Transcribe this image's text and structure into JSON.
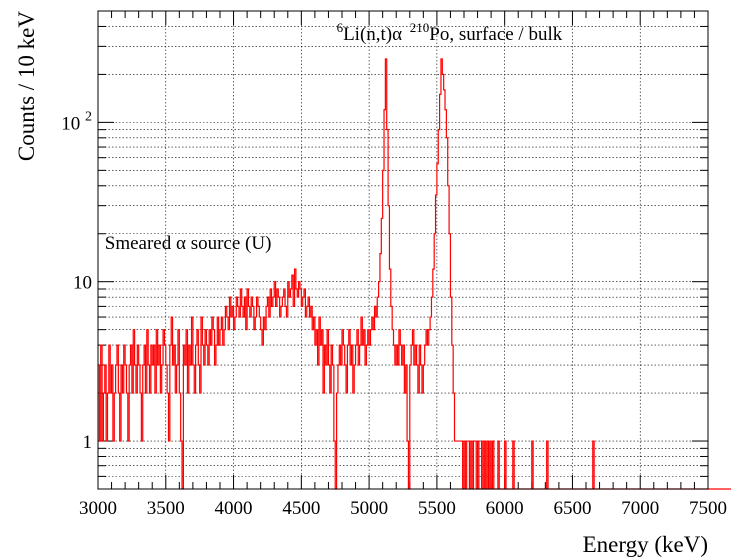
{
  "chart_data": {
    "type": "line",
    "title": "",
    "xlabel": "Energy (keV)",
    "ylabel": "Counts / 10 keV",
    "xlim": [
      3000,
      7500
    ],
    "ylim": [
      0.5,
      500
    ],
    "yscale": "log",
    "grid": true,
    "line_color": "#ff0000",
    "x_ticks": [
      3000,
      3500,
      4000,
      4500,
      5000,
      5500,
      6000,
      6500,
      7000,
      7500
    ],
    "x_tick_labels": [
      "3000",
      "3500",
      "4000",
      "4500",
      "5000",
      "5500",
      "6000",
      "6500",
      "7000",
      "7500"
    ],
    "y_tick_labels": [
      {
        "value": 1,
        "base": "1",
        "exp": ""
      },
      {
        "value": 10,
        "base": "10",
        "exp": ""
      },
      {
        "value": 100,
        "base": "10",
        "exp": "2"
      }
    ],
    "annotations": [
      {
        "id": "li",
        "sup": "6",
        "text": "Li(n,t)α",
        "x": 4760,
        "y": 330
      },
      {
        "id": "po",
        "sup": "210",
        "text": "Po, surface / bulk",
        "x": 5300,
        "y": 330
      },
      {
        "id": "smeared",
        "sup": "",
        "text": "Smeared α source (U)",
        "x": 3050,
        "y": 16
      }
    ],
    "series": [
      {
        "bin_width_kev": 10,
        "x_start": 3000,
        "values": [
          3,
          1,
          4,
          1,
          2,
          3,
          1,
          2,
          4,
          2,
          3,
          1,
          2,
          3,
          4,
          2,
          1,
          3,
          2,
          4,
          3,
          2,
          1,
          3,
          4,
          2,
          5,
          3,
          2,
          4,
          3,
          2,
          1,
          3,
          4,
          2,
          5,
          3,
          2,
          4,
          3,
          4,
          2,
          5,
          3,
          4,
          2,
          3,
          5,
          4,
          3,
          2,
          1,
          4,
          6,
          3,
          4,
          2,
          3,
          5,
          2,
          1,
          0,
          4,
          3,
          5,
          2,
          4,
          3,
          6,
          3,
          2,
          4,
          5,
          3,
          2,
          6,
          4,
          3,
          5,
          4,
          3,
          5,
          4,
          6,
          5,
          3,
          4,
          6,
          4,
          5,
          6,
          4,
          5,
          7,
          6,
          5,
          8,
          6,
          7,
          5,
          6,
          8,
          7,
          6,
          9,
          7,
          6,
          8,
          5,
          9,
          7,
          6,
          8,
          7,
          5,
          6,
          8,
          7,
          6,
          5,
          4,
          6,
          5,
          7,
          8,
          6,
          9,
          7,
          8,
          10,
          7,
          9,
          8,
          6,
          7,
          8,
          9,
          7,
          6,
          10,
          8,
          9,
          11,
          7,
          12,
          9,
          8,
          10,
          9,
          7,
          8,
          9,
          6,
          7,
          8,
          6,
          7,
          5,
          6,
          4,
          5,
          3,
          6,
          4,
          5,
          2,
          4,
          3,
          5,
          3,
          2,
          4,
          3,
          1,
          0,
          2,
          3,
          4,
          3,
          5,
          4,
          3,
          2,
          4,
          5,
          3,
          4,
          2,
          3,
          4,
          5,
          3,
          4,
          6,
          4,
          5,
          3,
          4,
          5,
          4,
          5,
          6,
          5,
          7,
          6,
          8,
          10,
          15,
          25,
          50,
          120,
          250,
          90,
          30,
          12,
          7,
          5,
          4,
          3,
          4,
          3,
          5,
          4,
          3,
          4,
          2,
          3,
          1,
          0,
          3,
          4,
          5,
          3,
          4,
          3,
          2,
          4,
          3,
          2,
          3,
          4,
          5,
          4,
          5,
          6,
          8,
          12,
          20,
          35,
          55,
          90,
          150,
          250,
          200,
          160,
          120,
          80,
          40,
          20,
          8,
          4,
          2,
          1,
          1,
          1,
          1,
          1,
          1,
          0,
          1,
          0,
          1,
          1,
          0,
          1,
          0,
          1,
          1,
          0,
          1,
          0,
          0,
          1,
          0,
          1,
          0,
          1,
          0,
          1,
          0,
          1,
          0,
          0,
          0,
          1,
          0,
          0,
          0,
          0,
          1,
          0,
          0,
          0,
          0,
          0,
          1,
          0,
          0,
          0,
          0,
          0,
          0,
          0,
          0,
          0,
          0,
          0,
          0,
          0,
          1,
          0,
          0,
          0,
          0,
          0,
          0,
          0,
          0,
          0,
          0,
          1,
          0,
          0,
          0,
          0,
          0,
          0,
          0,
          0,
          0,
          0,
          0,
          0,
          0,
          0,
          0,
          0,
          0,
          0,
          0,
          0,
          0,
          0,
          0,
          0,
          0,
          0,
          0,
          0,
          0,
          0,
          0,
          0,
          0,
          1,
          0,
          0,
          0,
          0,
          0,
          0,
          0,
          0,
          0,
          0,
          0,
          0,
          0,
          0,
          0,
          0,
          0,
          0,
          0,
          0,
          0,
          0,
          0,
          0,
          0,
          0,
          0,
          0,
          0,
          0,
          0,
          0,
          0,
          0,
          0,
          0,
          0,
          0,
          0,
          0,
          0,
          0,
          0,
          0,
          0,
          0,
          0,
          0,
          0,
          0,
          0,
          0,
          0,
          0,
          0,
          0,
          0,
          0,
          0,
          0,
          0,
          0,
          0,
          0,
          0,
          0,
          0,
          0,
          0,
          0,
          0,
          0,
          0,
          0,
          0,
          0,
          0,
          0,
          0,
          0,
          0,
          0,
          0,
          0,
          0,
          0,
          0,
          0,
          0,
          0,
          0,
          0,
          0,
          0,
          0,
          0,
          0,
          0,
          0,
          0,
          0,
          0,
          0,
          0,
          0,
          0,
          0,
          0,
          0,
          0,
          0,
          0,
          0,
          0,
          0,
          0,
          0,
          0,
          0,
          0,
          0,
          0,
          0,
          0,
          0,
          0,
          0,
          0,
          0,
          0,
          0,
          0,
          0,
          0,
          0,
          0,
          0,
          0,
          0,
          0,
          0,
          0,
          0,
          0,
          0,
          0,
          0,
          0,
          0,
          0,
          0,
          0,
          0,
          0,
          0,
          0,
          0,
          0,
          0,
          0,
          0,
          0,
          0,
          0,
          0,
          0,
          0,
          0,
          0,
          0,
          0,
          0,
          0,
          0,
          0,
          0,
          0,
          0,
          0,
          0,
          0,
          0,
          0,
          0,
          0,
          0,
          0,
          0,
          0,
          0,
          0,
          0,
          0,
          0,
          0,
          0,
          0,
          0,
          0,
          0,
          0,
          0,
          0,
          0,
          0,
          0,
          0,
          0,
          0,
          0,
          0,
          0,
          0,
          0
        ]
      }
    ]
  }
}
